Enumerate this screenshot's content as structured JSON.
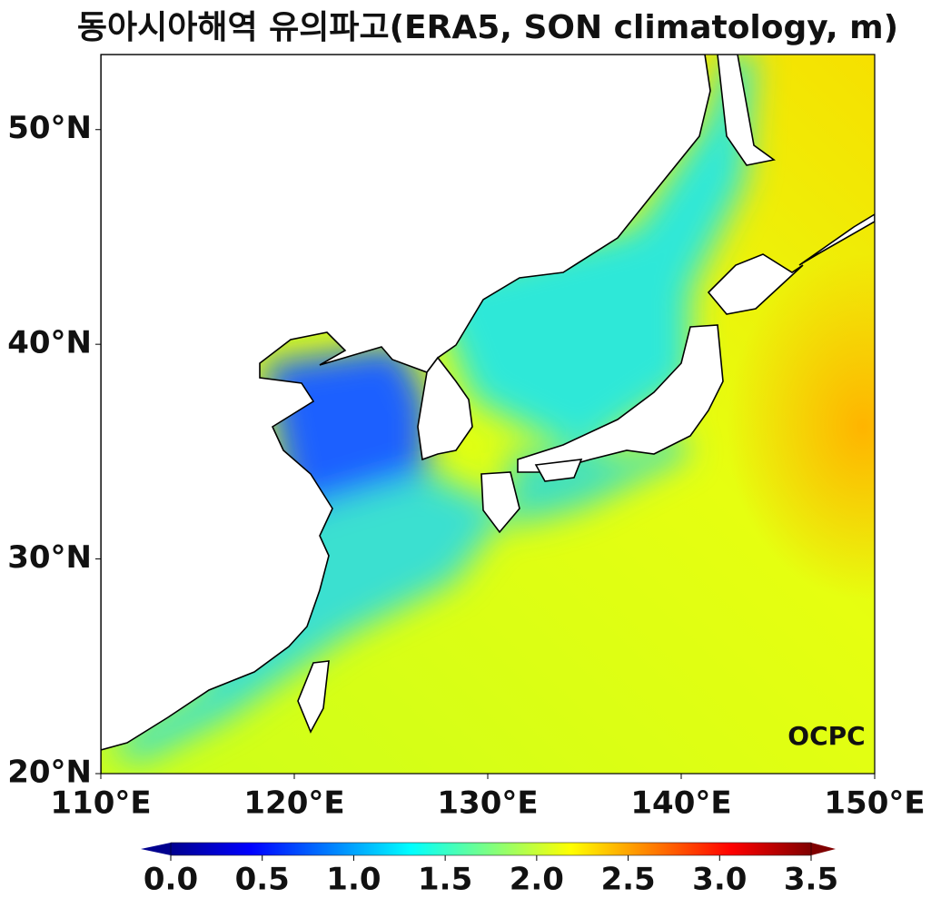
{
  "map": {
    "title": "동아시아해역 유의파고(ERA5, SON climatology, m)",
    "xlim": [
      110,
      150
    ],
    "ylim": [
      20,
      53.5
    ],
    "xticks": [
      {
        "value": 110,
        "label": "110°E"
      },
      {
        "value": 120,
        "label": "120°E"
      },
      {
        "value": 130,
        "label": "130°E"
      },
      {
        "value": 140,
        "label": "140°E"
      },
      {
        "value": 150,
        "label": "150°E"
      }
    ],
    "yticks": [
      {
        "value": 20,
        "label": "20°N"
      },
      {
        "value": 30,
        "label": "30°N"
      },
      {
        "value": 40,
        "label": "40°N"
      },
      {
        "value": 50,
        "label": "50°N"
      }
    ],
    "colorbar": {
      "lim": [
        0,
        3.5
      ],
      "ticks": [
        {
          "value": 0,
          "label": "0.0"
        },
        0.5,
        {
          "value": 1,
          "label": "1.0"
        },
        1.5,
        {
          "value": 2,
          "label": "2.0"
        },
        2.5,
        {
          "value": 3,
          "label": "3.0"
        },
        3.5
      ]
    },
    "logo": "OCPC"
  }
}
